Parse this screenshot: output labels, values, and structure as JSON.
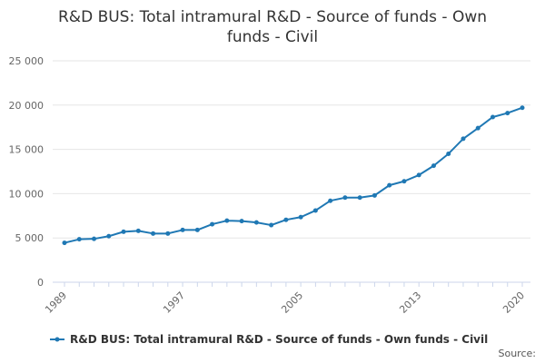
{
  "chart_data": {
    "type": "line",
    "title": "R&D BUS: Total intramural R&D - Source of funds - Own funds - Civil",
    "xlabel": "",
    "ylabel": "",
    "x": [
      1989,
      1990,
      1991,
      1992,
      1993,
      1994,
      1995,
      1996,
      1997,
      1998,
      1999,
      2000,
      2001,
      2002,
      2003,
      2004,
      2005,
      2006,
      2007,
      2008,
      2009,
      2010,
      2011,
      2012,
      2013,
      2014,
      2015,
      2016,
      2017,
      2018,
      2019,
      2020
    ],
    "series": [
      {
        "name": "R&D BUS: Total intramural R&D - Source of funds - Own funds - Civil",
        "color": "#1f78b4",
        "values": [
          4450,
          4850,
          4900,
          5200,
          5700,
          5800,
          5500,
          5500,
          5900,
          5900,
          6550,
          6950,
          6900,
          6750,
          6450,
          7050,
          7350,
          8100,
          9200,
          9550,
          9550,
          9800,
          10950,
          11400,
          12100,
          13150,
          14500,
          16200,
          17400,
          18650,
          19100,
          19700
        ]
      }
    ],
    "xlim": [
      1989,
      2020
    ],
    "ylim": [
      0,
      25000
    ],
    "x_ticks": [
      "1989",
      "1997",
      "2005",
      "2013",
      "2020"
    ],
    "y_ticks": [
      "0",
      "5 000",
      "10 000",
      "15 000",
      "20 000",
      "25 000"
    ],
    "grid": true,
    "legend": "bottom"
  },
  "source_label": "Source:"
}
